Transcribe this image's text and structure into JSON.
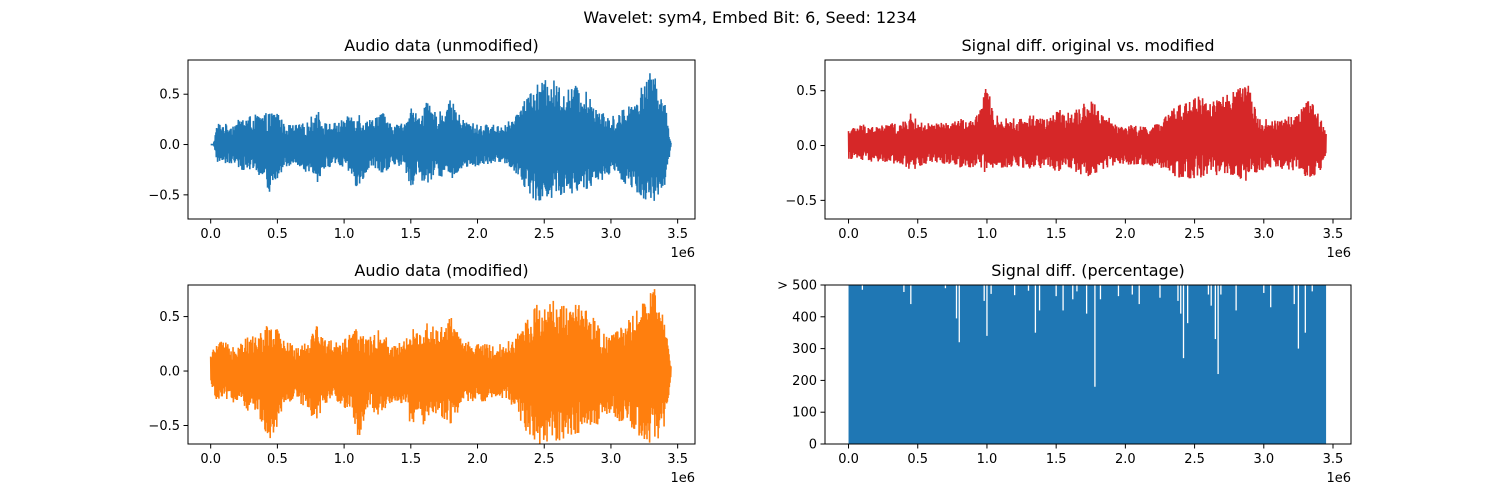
{
  "figure": {
    "suptitle": "Wavelet: sym4, Embed Bit: 6, Seed: 1234"
  },
  "chart_data": [
    {
      "id": "p0",
      "type": "line",
      "title": "Audio data (unmodified)",
      "xlabel": "",
      "ylabel": "",
      "x_offset_label": "1e6",
      "color": "#1f77b4",
      "xlim": [
        -0.17,
        3.63
      ],
      "ylim": [
        -0.74,
        0.84
      ],
      "x_ticks": [
        0,
        0.5,
        1,
        1.5,
        2,
        2.5,
        3,
        3.5
      ],
      "x_tick_labels": [
        "0.0",
        "0.5",
        "1.0",
        "1.5",
        "2.0",
        "2.5",
        "3.0",
        "3.5"
      ],
      "y_ticks": [
        -0.5,
        0,
        0.5
      ],
      "y_tick_labels": [
        "−0.5",
        "0.0",
        "0.5"
      ],
      "data_range": [
        0,
        3.45
      ],
      "upper_envelope": [
        [
          0.0,
          0.0
        ],
        [
          0.02,
          0.0
        ],
        [
          0.05,
          0.22
        ],
        [
          0.15,
          0.2
        ],
        [
          0.25,
          0.28
        ],
        [
          0.35,
          0.3
        ],
        [
          0.45,
          0.32
        ],
        [
          0.5,
          0.36
        ],
        [
          0.55,
          0.2
        ],
        [
          0.65,
          0.2
        ],
        [
          0.72,
          0.22
        ],
        [
          0.8,
          0.36
        ],
        [
          0.85,
          0.22
        ],
        [
          0.95,
          0.22
        ],
        [
          1.05,
          0.3
        ],
        [
          1.1,
          0.35
        ],
        [
          1.18,
          0.24
        ],
        [
          1.28,
          0.35
        ],
        [
          1.35,
          0.2
        ],
        [
          1.45,
          0.22
        ],
        [
          1.5,
          0.4
        ],
        [
          1.55,
          0.3
        ],
        [
          1.62,
          0.42
        ],
        [
          1.7,
          0.3
        ],
        [
          1.8,
          0.45
        ],
        [
          1.88,
          0.26
        ],
        [
          2.0,
          0.2
        ],
        [
          2.1,
          0.2
        ],
        [
          2.2,
          0.2
        ],
        [
          2.3,
          0.3
        ],
        [
          2.35,
          0.5
        ],
        [
          2.45,
          0.6
        ],
        [
          2.55,
          0.67
        ],
        [
          2.65,
          0.55
        ],
        [
          2.75,
          0.6
        ],
        [
          2.82,
          0.52
        ],
        [
          2.9,
          0.4
        ],
        [
          2.98,
          0.26
        ],
        [
          3.05,
          0.32
        ],
        [
          3.15,
          0.42
        ],
        [
          3.25,
          0.62
        ],
        [
          3.32,
          0.77
        ],
        [
          3.4,
          0.45
        ],
        [
          3.45,
          0.02
        ]
      ],
      "lower_envelope": [
        [
          0.0,
          0.0
        ],
        [
          0.02,
          0.0
        ],
        [
          0.05,
          -0.18
        ],
        [
          0.15,
          -0.2
        ],
        [
          0.25,
          -0.26
        ],
        [
          0.35,
          -0.3
        ],
        [
          0.45,
          -0.5
        ],
        [
          0.5,
          -0.38
        ],
        [
          0.55,
          -0.22
        ],
        [
          0.65,
          -0.2
        ],
        [
          0.72,
          -0.28
        ],
        [
          0.8,
          -0.38
        ],
        [
          0.85,
          -0.24
        ],
        [
          0.95,
          -0.22
        ],
        [
          1.05,
          -0.3
        ],
        [
          1.1,
          -0.5
        ],
        [
          1.18,
          -0.25
        ],
        [
          1.28,
          -0.32
        ],
        [
          1.35,
          -0.22
        ],
        [
          1.45,
          -0.22
        ],
        [
          1.5,
          -0.45
        ],
        [
          1.55,
          -0.3
        ],
        [
          1.62,
          -0.42
        ],
        [
          1.7,
          -0.3
        ],
        [
          1.8,
          -0.38
        ],
        [
          1.88,
          -0.25
        ],
        [
          2.0,
          -0.22
        ],
        [
          2.1,
          -0.2
        ],
        [
          2.2,
          -0.18
        ],
        [
          2.3,
          -0.3
        ],
        [
          2.35,
          -0.42
        ],
        [
          2.45,
          -0.6
        ],
        [
          2.55,
          -0.55
        ],
        [
          2.65,
          -0.5
        ],
        [
          2.75,
          -0.48
        ],
        [
          2.82,
          -0.45
        ],
        [
          2.9,
          -0.4
        ],
        [
          2.98,
          -0.3
        ],
        [
          3.05,
          -0.35
        ],
        [
          3.15,
          -0.42
        ],
        [
          3.25,
          -0.55
        ],
        [
          3.32,
          -0.65
        ],
        [
          3.4,
          -0.45
        ],
        [
          3.45,
          -0.02
        ]
      ]
    },
    {
      "id": "p1",
      "type": "line",
      "title": "Signal diff. original vs. modified",
      "xlabel": "",
      "ylabel": "",
      "x_offset_label": "1e6",
      "color": "#d62728",
      "xlim": [
        -0.17,
        3.63
      ],
      "ylim": [
        -0.67,
        0.78
      ],
      "x_ticks": [
        0,
        0.5,
        1,
        1.5,
        2,
        2.5,
        3,
        3.5
      ],
      "x_tick_labels": [
        "0.0",
        "0.5",
        "1.0",
        "1.5",
        "2.0",
        "2.5",
        "3.0",
        "3.5"
      ],
      "y_ticks": [
        -0.5,
        0,
        0.5
      ],
      "y_tick_labels": [
        "−0.5",
        "0.0",
        "0.5"
      ],
      "data_range": [
        0,
        3.45
      ],
      "upper_envelope": [
        [
          0.0,
          0.15
        ],
        [
          0.1,
          0.2
        ],
        [
          0.2,
          0.18
        ],
        [
          0.3,
          0.2
        ],
        [
          0.4,
          0.22
        ],
        [
          0.45,
          0.3
        ],
        [
          0.5,
          0.22
        ],
        [
          0.6,
          0.2
        ],
        [
          0.75,
          0.22
        ],
        [
          0.8,
          0.25
        ],
        [
          0.9,
          0.22
        ],
        [
          1.0,
          0.55
        ],
        [
          1.05,
          0.3
        ],
        [
          1.1,
          0.25
        ],
        [
          1.25,
          0.25
        ],
        [
          1.35,
          0.3
        ],
        [
          1.45,
          0.25
        ],
        [
          1.52,
          0.33
        ],
        [
          1.58,
          0.3
        ],
        [
          1.65,
          0.35
        ],
        [
          1.75,
          0.42
        ],
        [
          1.85,
          0.28
        ],
        [
          1.95,
          0.2
        ],
        [
          2.1,
          0.18
        ],
        [
          2.25,
          0.2
        ],
        [
          2.3,
          0.3
        ],
        [
          2.4,
          0.38
        ],
        [
          2.5,
          0.48
        ],
        [
          2.6,
          0.42
        ],
        [
          2.7,
          0.45
        ],
        [
          2.8,
          0.5
        ],
        [
          2.88,
          0.58
        ],
        [
          2.95,
          0.3
        ],
        [
          3.05,
          0.22
        ],
        [
          3.15,
          0.25
        ],
        [
          3.25,
          0.3
        ],
        [
          3.32,
          0.45
        ],
        [
          3.4,
          0.3
        ],
        [
          3.45,
          0.12
        ]
      ],
      "lower_envelope": [
        [
          0.0,
          -0.12
        ],
        [
          0.1,
          -0.15
        ],
        [
          0.2,
          -0.15
        ],
        [
          0.3,
          -0.18
        ],
        [
          0.4,
          -0.2
        ],
        [
          0.45,
          -0.25
        ],
        [
          0.5,
          -0.2
        ],
        [
          0.6,
          -0.15
        ],
        [
          0.75,
          -0.18
        ],
        [
          0.8,
          -0.2
        ],
        [
          0.9,
          -0.2
        ],
        [
          1.0,
          -0.25
        ],
        [
          1.05,
          -0.25
        ],
        [
          1.1,
          -0.22
        ],
        [
          1.25,
          -0.2
        ],
        [
          1.35,
          -0.22
        ],
        [
          1.45,
          -0.2
        ],
        [
          1.52,
          -0.25
        ],
        [
          1.58,
          -0.22
        ],
        [
          1.65,
          -0.25
        ],
        [
          1.75,
          -0.3
        ],
        [
          1.85,
          -0.22
        ],
        [
          1.95,
          -0.18
        ],
        [
          2.1,
          -0.18
        ],
        [
          2.25,
          -0.2
        ],
        [
          2.3,
          -0.25
        ],
        [
          2.4,
          -0.3
        ],
        [
          2.5,
          -0.3
        ],
        [
          2.6,
          -0.28
        ],
        [
          2.7,
          -0.28
        ],
        [
          2.8,
          -0.3
        ],
        [
          2.88,
          -0.35
        ],
        [
          2.95,
          -0.25
        ],
        [
          3.05,
          -0.2
        ],
        [
          3.15,
          -0.22
        ],
        [
          3.25,
          -0.25
        ],
        [
          3.32,
          -0.3
        ],
        [
          3.4,
          -0.25
        ],
        [
          3.45,
          -0.1
        ]
      ]
    },
    {
      "id": "p2",
      "type": "line",
      "title": "Audio data (modified)",
      "xlabel": "",
      "ylabel": "",
      "x_offset_label": "1e6",
      "color": "#ff7f0e",
      "xlim": [
        -0.17,
        3.63
      ],
      "ylim": [
        -0.67,
        0.79
      ],
      "x_ticks": [
        0,
        0.5,
        1,
        1.5,
        2,
        2.5,
        3,
        3.5
      ],
      "x_tick_labels": [
        "0.0",
        "0.5",
        "1.0",
        "1.5",
        "2.0",
        "2.5",
        "3.0",
        "3.5"
      ],
      "y_ticks": [
        -0.5,
        0,
        0.5
      ],
      "y_tick_labels": [
        "−0.5",
        "0.0",
        "0.5"
      ],
      "data_range": [
        0,
        3.45
      ],
      "upper_envelope": [
        [
          0.0,
          0.15
        ],
        [
          0.05,
          0.28
        ],
        [
          0.15,
          0.25
        ],
        [
          0.25,
          0.3
        ],
        [
          0.35,
          0.35
        ],
        [
          0.45,
          0.45
        ],
        [
          0.5,
          0.4
        ],
        [
          0.55,
          0.28
        ],
        [
          0.65,
          0.25
        ],
        [
          0.72,
          0.3
        ],
        [
          0.8,
          0.45
        ],
        [
          0.85,
          0.3
        ],
        [
          0.95,
          0.28
        ],
        [
          1.05,
          0.35
        ],
        [
          1.1,
          0.42
        ],
        [
          1.18,
          0.3
        ],
        [
          1.28,
          0.4
        ],
        [
          1.35,
          0.25
        ],
        [
          1.45,
          0.28
        ],
        [
          1.5,
          0.45
        ],
        [
          1.55,
          0.35
        ],
        [
          1.62,
          0.5
        ],
        [
          1.7,
          0.38
        ],
        [
          1.8,
          0.5
        ],
        [
          1.88,
          0.3
        ],
        [
          2.0,
          0.25
        ],
        [
          2.1,
          0.25
        ],
        [
          2.2,
          0.25
        ],
        [
          2.3,
          0.35
        ],
        [
          2.35,
          0.5
        ],
        [
          2.45,
          0.62
        ],
        [
          2.55,
          0.68
        ],
        [
          2.65,
          0.6
        ],
        [
          2.75,
          0.62
        ],
        [
          2.82,
          0.55
        ],
        [
          2.9,
          0.45
        ],
        [
          2.98,
          0.3
        ],
        [
          3.05,
          0.38
        ],
        [
          3.15,
          0.5
        ],
        [
          3.25,
          0.65
        ],
        [
          3.32,
          0.78
        ],
        [
          3.4,
          0.5
        ],
        [
          3.45,
          0.05
        ]
      ],
      "lower_envelope": [
        [
          0.0,
          -0.15
        ],
        [
          0.05,
          -0.28
        ],
        [
          0.15,
          -0.28
        ],
        [
          0.25,
          -0.35
        ],
        [
          0.35,
          -0.4
        ],
        [
          0.45,
          -0.65
        ],
        [
          0.5,
          -0.5
        ],
        [
          0.55,
          -0.3
        ],
        [
          0.65,
          -0.28
        ],
        [
          0.72,
          -0.35
        ],
        [
          0.8,
          -0.5
        ],
        [
          0.85,
          -0.32
        ],
        [
          0.95,
          -0.3
        ],
        [
          1.05,
          -0.38
        ],
        [
          1.1,
          -0.65
        ],
        [
          1.18,
          -0.35
        ],
        [
          1.28,
          -0.42
        ],
        [
          1.35,
          -0.3
        ],
        [
          1.45,
          -0.3
        ],
        [
          1.5,
          -0.55
        ],
        [
          1.55,
          -0.4
        ],
        [
          1.62,
          -0.55
        ],
        [
          1.7,
          -0.4
        ],
        [
          1.8,
          -0.5
        ],
        [
          1.88,
          -0.32
        ],
        [
          2.0,
          -0.28
        ],
        [
          2.1,
          -0.28
        ],
        [
          2.2,
          -0.25
        ],
        [
          2.3,
          -0.4
        ],
        [
          2.35,
          -0.55
        ],
        [
          2.45,
          -0.67
        ],
        [
          2.55,
          -0.67
        ],
        [
          2.65,
          -0.62
        ],
        [
          2.75,
          -0.6
        ],
        [
          2.82,
          -0.55
        ],
        [
          2.9,
          -0.5
        ],
        [
          2.98,
          -0.38
        ],
        [
          3.05,
          -0.45
        ],
        [
          3.15,
          -0.55
        ],
        [
          3.25,
          -0.67
        ],
        [
          3.32,
          -0.67
        ],
        [
          3.4,
          -0.55
        ],
        [
          3.45,
          -0.05
        ]
      ]
    },
    {
      "id": "p3",
      "type": "area",
      "title": "Signal diff. (percentage)",
      "xlabel": "",
      "ylabel": "",
      "x_offset_label": "1e6",
      "color": "#1f77b4",
      "xlim": [
        -0.17,
        3.63
      ],
      "ylim": [
        0,
        500
      ],
      "x_ticks": [
        0,
        0.5,
        1,
        1.5,
        2,
        2.5,
        3,
        3.5
      ],
      "x_tick_labels": [
        "0.0",
        "0.5",
        "1.0",
        "1.5",
        "2.0",
        "2.5",
        "3.0",
        "3.5"
      ],
      "y_ticks": [
        0,
        100,
        200,
        300,
        400,
        500
      ],
      "y_tick_labels": [
        "0",
        "100",
        "200",
        "300",
        "400",
        "> 500"
      ],
      "data_range": [
        0,
        3.45
      ],
      "fill_top": 500,
      "dips": [
        [
          0.1,
          485
        ],
        [
          0.4,
          478
        ],
        [
          0.45,
          440
        ],
        [
          0.7,
          490
        ],
        [
          0.78,
          395
        ],
        [
          0.8,
          320
        ],
        [
          0.98,
          450
        ],
        [
          1.0,
          340
        ],
        [
          1.03,
          472
        ],
        [
          1.2,
          468
        ],
        [
          1.3,
          482
        ],
        [
          1.35,
          350
        ],
        [
          1.38,
          420
        ],
        [
          1.5,
          465
        ],
        [
          1.55,
          420
        ],
        [
          1.62,
          455
        ],
        [
          1.65,
          480
        ],
        [
          1.72,
          410
        ],
        [
          1.78,
          180
        ],
        [
          1.82,
          455
        ],
        [
          1.95,
          465
        ],
        [
          2.05,
          470
        ],
        [
          2.1,
          440
        ],
        [
          2.25,
          460
        ],
        [
          2.38,
          450
        ],
        [
          2.4,
          410
        ],
        [
          2.42,
          270
        ],
        [
          2.45,
          380
        ],
        [
          2.6,
          470
        ],
        [
          2.62,
          435
        ],
        [
          2.65,
          330
        ],
        [
          2.67,
          220
        ],
        [
          2.69,
          470
        ],
        [
          2.8,
          420
        ],
        [
          3.0,
          475
        ],
        [
          3.05,
          430
        ],
        [
          3.22,
          440
        ],
        [
          3.25,
          300
        ],
        [
          3.3,
          350
        ],
        [
          3.35,
          480
        ]
      ]
    }
  ]
}
